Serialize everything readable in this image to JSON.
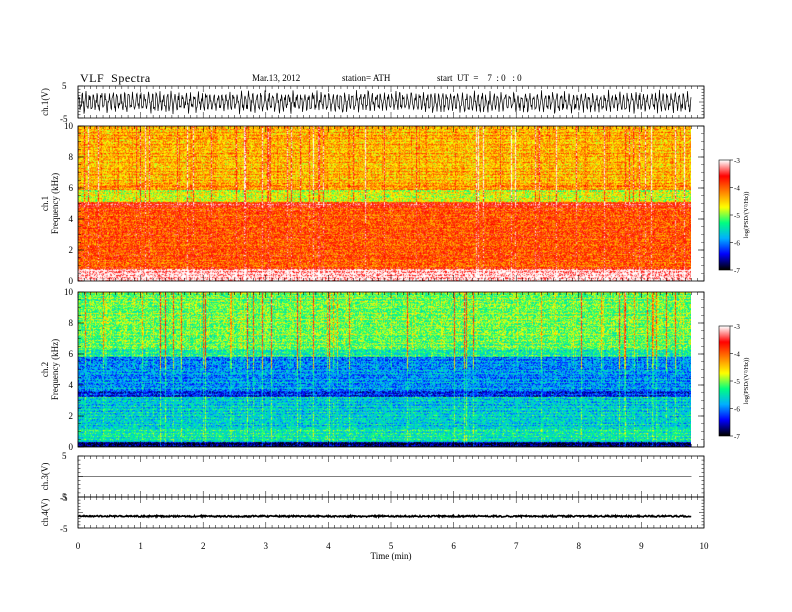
{
  "header": {
    "title": "VLF  Spectra",
    "date": "Mar.13, 2012",
    "station": "station= ATH",
    "start": "start  UT  =    7  : 0   : 0"
  },
  "chart_data": [
    {
      "type": "line",
      "name": "ch1-waveform",
      "ylabel": "ch.1(V)",
      "ylim": [
        -5,
        5
      ],
      "yticks": [
        "5",
        "-5"
      ],
      "xlim": [
        0,
        10
      ],
      "data_extent_min": 9.8,
      "trace": "noisy oscillation mostly between about -3 and 3"
    },
    {
      "type": "heatmap",
      "name": "ch1-spectrogram",
      "ylabel": "Frequency  (kHz)",
      "ylabel_prefix": "ch.1",
      "ylim": [
        0,
        10
      ],
      "yticks": [
        "0",
        "2",
        "4",
        "6",
        "8",
        "10"
      ],
      "colorbar": {
        "label": "log(PSD/(V²/Hz))",
        "range": [
          -7,
          -3
        ],
        "ticks": [
          "-7",
          "-6",
          "-5",
          "-4",
          "-3"
        ],
        "colors": [
          "#000000",
          "#0000ff",
          "#00b0ff",
          "#00ff80",
          "#ffff00",
          "#ff8000",
          "#ff0000",
          "#ffffff"
        ]
      },
      "bands": [
        {
          "from": 0,
          "to": 0.8,
          "level": -3.1
        },
        {
          "from": 0.8,
          "to": 4.8,
          "level": -3.9
        },
        {
          "from": 4.8,
          "to": 5.1,
          "level": -3.6
        },
        {
          "from": 5.1,
          "to": 5.9,
          "level": -4.7
        },
        {
          "from": 5.9,
          "to": 6.2,
          "level": -4.1
        },
        {
          "from": 6.2,
          "to": 10,
          "level": -4.3
        }
      ]
    },
    {
      "type": "heatmap",
      "name": "ch2-spectrogram",
      "ylabel": "Frequency  (kHz)",
      "ylabel_prefix": "ch.2",
      "ylim": [
        0,
        10
      ],
      "yticks": [
        "0",
        "2",
        "4",
        "6",
        "8",
        "10"
      ],
      "colorbar": {
        "label": "log(PSD/(V²/Hz))",
        "range": [
          -7,
          -3
        ],
        "ticks": [
          "-7",
          "-6",
          "-5",
          "-4",
          "-3"
        ],
        "colors": [
          "#000000",
          "#0000ff",
          "#00b0ff",
          "#00ff80",
          "#ffff00",
          "#ff8000",
          "#ff0000",
          "#ffffff"
        ]
      },
      "bands": [
        {
          "from": 0,
          "to": 0.3,
          "level": -6.8
        },
        {
          "from": 0.3,
          "to": 1.2,
          "level": -5.4
        },
        {
          "from": 1.2,
          "to": 3.2,
          "level": -5.6
        },
        {
          "from": 3.2,
          "to": 3.6,
          "level": -6.3
        },
        {
          "from": 3.6,
          "to": 5.8,
          "level": -5.9
        },
        {
          "from": 5.8,
          "to": 6.3,
          "level": -5.3
        },
        {
          "from": 6.3,
          "to": 10,
          "level": -5.0
        }
      ]
    },
    {
      "type": "line",
      "name": "ch3-waveform",
      "ylabel": "ch.3(V)",
      "ylim": [
        -5,
        5
      ],
      "yticks": [
        "5",
        "-5"
      ],
      "trace": "flat"
    },
    {
      "type": "line",
      "name": "ch4-waveform",
      "ylabel": "ch.4(V)",
      "ylim": [
        -5,
        5
      ],
      "yticks": [
        "5",
        "-5"
      ],
      "trace": "constant offset near -1.2"
    }
  ],
  "xaxis": {
    "label": "Time  (min)",
    "ticks": [
      "0",
      "1",
      "2",
      "3",
      "4",
      "5",
      "6",
      "7",
      "8",
      "9",
      "10"
    ]
  }
}
